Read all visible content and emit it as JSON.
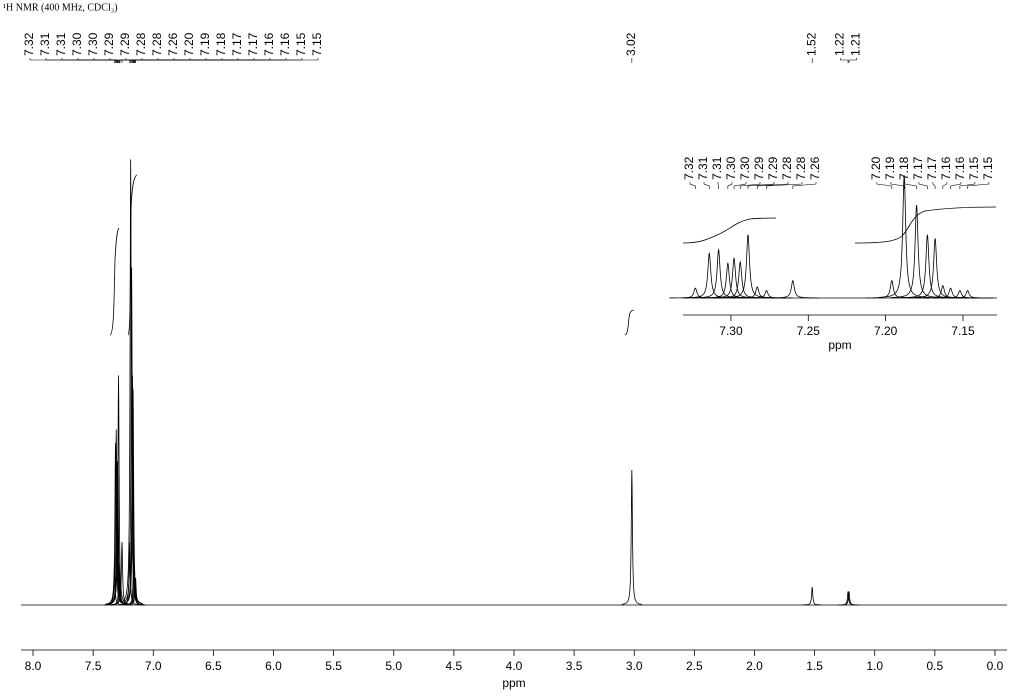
{
  "chart_data": [
    {
      "type": "line",
      "title": "¹H NMR (400 MHz, CDCl₃)",
      "x_label": "ppm",
      "color": "#000000",
      "xlim": [
        8.1,
        -0.1
      ],
      "ylim": [
        0,
        100
      ],
      "xticks": [
        {
          "value": 8,
          "label": "8.0"
        },
        7.5,
        {
          "value": 7,
          "label": "7.0"
        },
        6.5,
        {
          "value": 6,
          "label": "6.0"
        },
        5.5,
        {
          "value": 5,
          "label": "5.0"
        },
        4.5,
        {
          "value": 4,
          "label": "4.0"
        },
        3.5,
        {
          "value": 3,
          "label": "3.0"
        },
        2.5,
        {
          "value": 2,
          "label": "2.0"
        },
        1.5,
        {
          "value": 1,
          "label": "1.0"
        },
        0.5,
        {
          "value": 0,
          "label": "0.0"
        }
      ],
      "peaks": {
        "x": [
          7.323,
          7.314,
          7.308,
          7.302,
          7.298,
          7.294,
          7.289,
          7.283,
          7.277,
          7.26,
          7.196,
          7.188,
          7.18,
          7.173,
          7.168,
          7.163,
          7.158,
          7.152,
          7.147,
          3.02,
          1.52,
          1.222,
          1.214
        ],
        "values": [
          8,
          36,
          39,
          28,
          32,
          29,
          51,
          9,
          6,
          14,
          14,
          99,
          75,
          51,
          48,
          10,
          8,
          6,
          6,
          30,
          4,
          3,
          3
        ],
        "value_labels": [
          "7.32",
          "7.31",
          "7.31",
          "7.30",
          "7.30",
          "7.29",
          "7.29",
          "7.28",
          "7.28",
          "7.26",
          "7.20",
          "7.19",
          "7.18",
          "7.17",
          "7.17",
          "7.16",
          "7.16",
          "7.15",
          "7.15",
          "3.02",
          "1.52",
          "1.22",
          "1.21"
        ]
      }
    },
    {
      "type": "line",
      "x_label": "ppm",
      "color": "#000000",
      "xlim": [
        7.331,
        7.128
      ],
      "ylim": [
        0,
        100
      ],
      "xticks": [
        {
          "value": 7.3,
          "label": "7.30"
        },
        7.25,
        {
          "value": 7.2,
          "label": "7.20"
        },
        7.15
      ],
      "peaks": {
        "x": [
          7.323,
          7.314,
          7.308,
          7.302,
          7.298,
          7.294,
          7.289,
          7.283,
          7.277,
          7.26,
          7.196,
          7.188,
          7.18,
          7.173,
          7.168,
          7.163,
          7.158,
          7.152,
          7.147
        ],
        "values": [
          8,
          36,
          39,
          28,
          32,
          29,
          51,
          9,
          6,
          14,
          14,
          99,
          75,
          51,
          48,
          10,
          8,
          6,
          6
        ],
        "value_labels": [
          "7.32",
          "7.31",
          "7.31",
          "7.30",
          "7.30",
          "7.29",
          "7.29",
          "7.28",
          "7.28",
          "7.26",
          "7.20",
          "7.19",
          "7.18",
          "7.17",
          "7.17",
          "7.16",
          "7.16",
          "7.15",
          "7.15"
        ]
      }
    }
  ]
}
